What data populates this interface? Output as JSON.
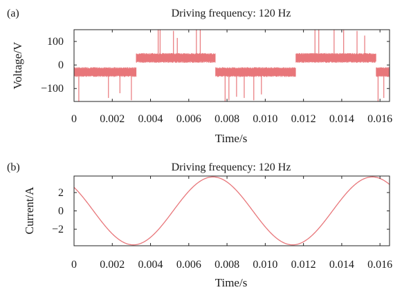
{
  "chart_data": [
    {
      "panel_label": "(a)",
      "type": "line",
      "title": "Driving frequency: 120 Hz",
      "xlabel": "Time/s",
      "ylabel": "Voltage/V",
      "xlim": [
        0,
        0.0165
      ],
      "ylim": [
        -155,
        150
      ],
      "xticks": [
        0,
        0.002,
        0.004,
        0.006,
        0.008,
        0.01,
        0.012,
        0.014,
        0.016
      ],
      "xtick_labels": [
        "0",
        "0.002",
        "0.004",
        "0.006",
        "0.008",
        "0.010",
        "0.012",
        "0.014",
        "0.016"
      ],
      "yticks": [
        100,
        0,
        -100
      ],
      "ytick_labels": [
        "100",
        "0",
        "−100"
      ],
      "grid": false,
      "series": [
        {
          "color": "#e8767a",
          "description_values": {
            "segments": [
              {
                "x_start": 0,
                "x_end": 0.00325,
                "level_low": -45,
                "level_high": -15
              },
              {
                "x_start": 0.00325,
                "x_end": 0.0074,
                "level_low": 15,
                "level_high": 45
              },
              {
                "x_start": 0.0074,
                "x_end": 0.0116,
                "level_low": -45,
                "level_high": -15
              },
              {
                "x_start": 0.0116,
                "x_end": 0.0158,
                "level_low": 15,
                "level_high": 45
              },
              {
                "x_start": 0.0158,
                "x_end": 0.0165,
                "level_low": -45,
                "level_high": -15
              }
            ],
            "spikes": [
              {
                "x": 0.00025,
                "y": -155
              },
              {
                "x": 0.0018,
                "y": -140
              },
              {
                "x": 0.0024,
                "y": -120
              },
              {
                "x": 0.003,
                "y": -150
              },
              {
                "x": 0.0044,
                "y": 150
              },
              {
                "x": 0.0045,
                "y": 150
              },
              {
                "x": 0.0052,
                "y": 145
              },
              {
                "x": 0.0054,
                "y": 115
              },
              {
                "x": 0.0064,
                "y": 150
              },
              {
                "x": 0.0066,
                "y": 150
              },
              {
                "x": 0.0079,
                "y": -155
              },
              {
                "x": 0.0081,
                "y": -150
              },
              {
                "x": 0.0085,
                "y": -135
              },
              {
                "x": 0.0089,
                "y": -140
              },
              {
                "x": 0.0094,
                "y": -150
              },
              {
                "x": 0.0098,
                "y": -125
              },
              {
                "x": 0.0126,
                "y": 150
              },
              {
                "x": 0.0128,
                "y": 150
              },
              {
                "x": 0.0136,
                "y": 150
              },
              {
                "x": 0.0141,
                "y": 150
              },
              {
                "x": 0.0148,
                "y": 145
              },
              {
                "x": 0.0152,
                "y": 125
              },
              {
                "x": 0.0159,
                "y": -155
              },
              {
                "x": 0.0162,
                "y": -140
              }
            ]
          }
        }
      ]
    },
    {
      "panel_label": "(b)",
      "type": "line",
      "title": "Driving frequency: 120 Hz",
      "xlabel": "Time/s",
      "ylabel": "Current/A",
      "xlim": [
        0,
        0.0165
      ],
      "ylim": [
        -3.8,
        3.8
      ],
      "xticks": [
        0,
        0.002,
        0.004,
        0.006,
        0.008,
        0.01,
        0.012,
        0.014,
        0.016
      ],
      "xtick_labels": [
        "0",
        "0.002",
        "0.004",
        "0.006",
        "0.008",
        "0.010",
        "0.012",
        "0.014",
        "0.016"
      ],
      "yticks": [
        2,
        0,
        -2
      ],
      "ytick_labels": [
        "2",
        "0",
        "−2"
      ],
      "grid": false,
      "series": [
        {
          "color": "#e8767a",
          "function": "sine",
          "amplitude": 3.7,
          "frequency_hz": 120,
          "min_at_x": 0.0031,
          "max_at_x": 0.00727
        }
      ]
    }
  ]
}
